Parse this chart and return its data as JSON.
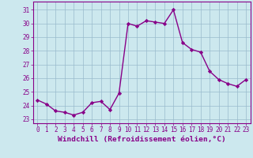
{
  "x": [
    0,
    1,
    2,
    3,
    4,
    5,
    6,
    7,
    8,
    9,
    10,
    11,
    12,
    13,
    14,
    15,
    16,
    17,
    18,
    19,
    20,
    21,
    22,
    23
  ],
  "y": [
    24.4,
    24.1,
    23.6,
    23.5,
    23.3,
    23.5,
    24.2,
    24.3,
    23.7,
    24.9,
    30.0,
    29.8,
    30.2,
    30.1,
    30.0,
    31.0,
    28.6,
    28.1,
    27.9,
    26.5,
    25.9,
    25.6,
    25.4,
    25.9
  ],
  "line_color": "#880088",
  "marker": "D",
  "marker_size": 2.2,
  "bg_color": "#cce8ee",
  "grid_color": "#99bbcc",
  "xlabel": "Windchill (Refroidissement éolien,°C)",
  "ylim": [
    22.7,
    31.6
  ],
  "xlim": [
    -0.5,
    23.5
  ],
  "yticks": [
    23,
    24,
    25,
    26,
    27,
    28,
    29,
    30,
    31
  ],
  "xticks": [
    0,
    1,
    2,
    3,
    4,
    5,
    6,
    7,
    8,
    9,
    10,
    11,
    12,
    13,
    14,
    15,
    16,
    17,
    18,
    19,
    20,
    21,
    22,
    23
  ],
  "tick_label_size": 5.5,
  "xlabel_size": 6.8,
  "line_width": 1.0
}
